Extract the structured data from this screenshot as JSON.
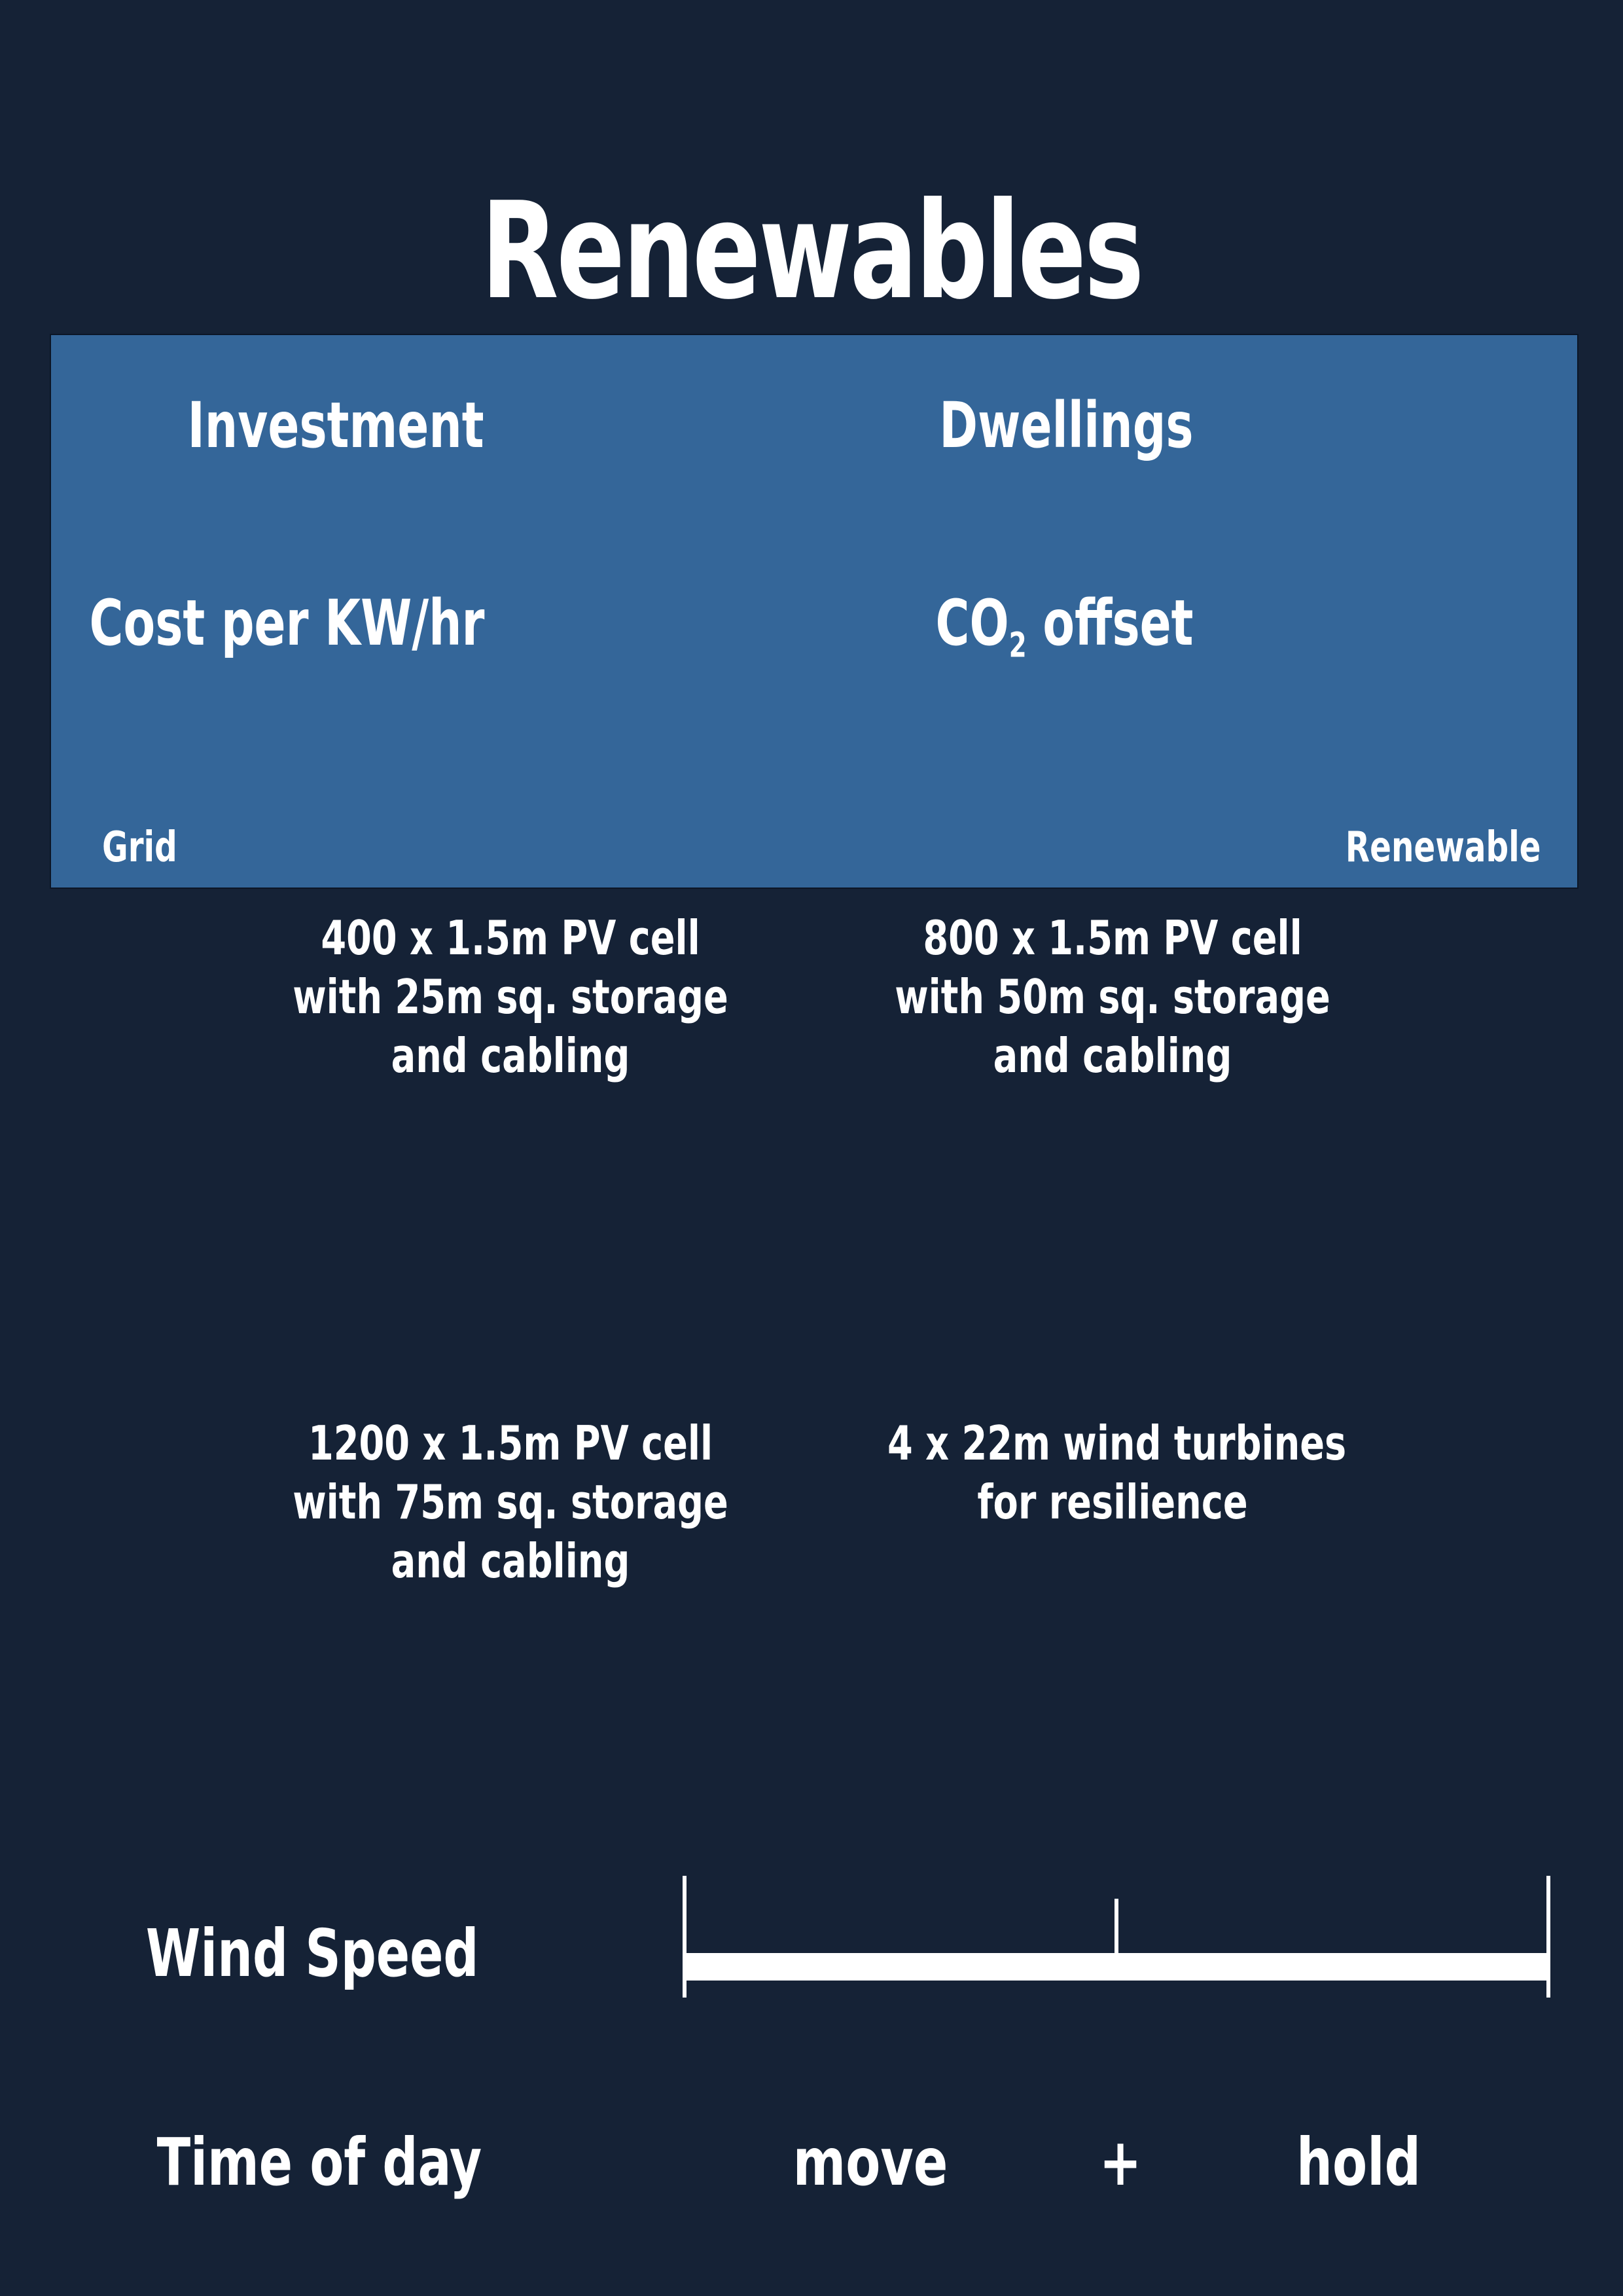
{
  "title": "Renewables",
  "panel": {
    "metrics": {
      "investment": "Investment",
      "dwellings": "Dwellings",
      "cost": "Cost per KW/hr",
      "co2_prefix": "CO",
      "co2_sub": "2",
      "co2_suffix": " offset"
    },
    "scale": {
      "left": "Grid",
      "right": "Renewable"
    }
  },
  "options": [
    {
      "lines": [
        "400 x 1.5m PV cell",
        "with 25m sq. storage",
        "and cabling"
      ]
    },
    {
      "lines": [
        "800 x 1.5m PV cell",
        "with 50m sq. storage",
        "and cabling"
      ]
    },
    {
      "lines": [
        "1200 x 1.5m PV cell",
        "with 75m sq. storage",
        "and cabling"
      ]
    },
    {
      "lines": [
        "4 x 22m wind turbines",
        "for resilience"
      ]
    }
  ],
  "controls": {
    "wind_speed_label": "Wind Speed",
    "wind_speed_level": 0.5,
    "time_of_day_label": "Time of day",
    "move": "move",
    "plus": "+",
    "hold": "hold"
  },
  "colors": {
    "background": "#152236",
    "panel": "#346699",
    "text": "#ffffff"
  }
}
